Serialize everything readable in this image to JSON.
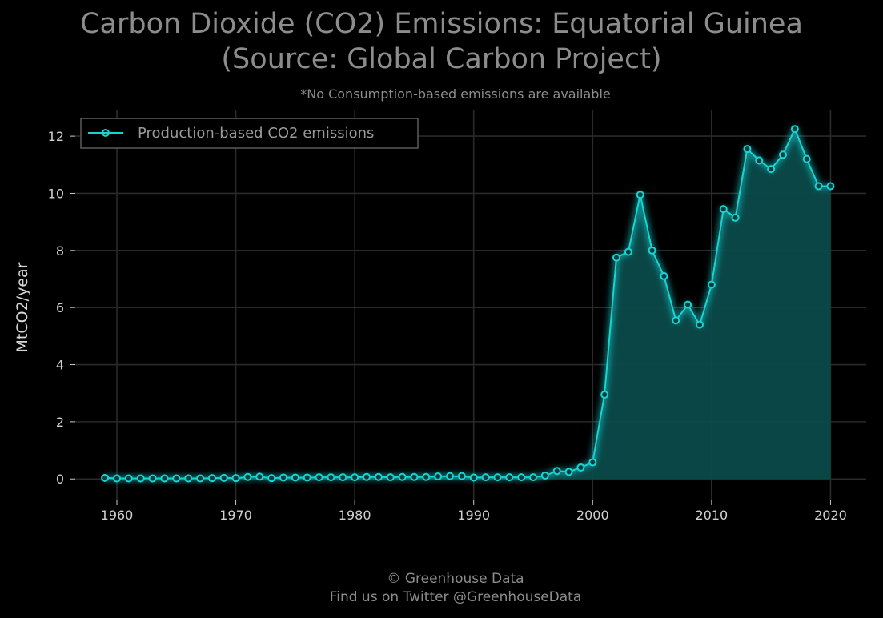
{
  "title_lines": [
    "Carbon Dioxide (CO2) Emissions: Equatorial Guinea",
    "(Source: Global Carbon Project)"
  ],
  "subtitle": "*No Consumption-based emissions are available",
  "footer": {
    "line1": "© Greenhouse Data",
    "line2": "Find us on Twitter @GreenhouseData"
  },
  "colors": {
    "background": "#000000",
    "line": "#19d3d3",
    "fill": "#0b4a4a",
    "grid": "#2a2a2a"
  },
  "chart_data": {
    "type": "area",
    "ylabel": "MtCO2/year",
    "xlabel": "",
    "xlim": [
      1956.5,
      2023
    ],
    "ylim": [
      -0.75,
      12.9
    ],
    "xticks": [
      1960,
      1970,
      1980,
      1990,
      2000,
      2010,
      2020
    ],
    "yticks": [
      0,
      2,
      4,
      6,
      8,
      10,
      12
    ],
    "grid": true,
    "legend_position": "top-left",
    "series": [
      {
        "name": "Production-based CO2 emissions",
        "x": [
          1959,
          1960,
          1961,
          1962,
          1963,
          1964,
          1965,
          1966,
          1967,
          1968,
          1969,
          1970,
          1971,
          1972,
          1973,
          1974,
          1975,
          1976,
          1977,
          1978,
          1979,
          1980,
          1981,
          1982,
          1983,
          1984,
          1985,
          1986,
          1987,
          1988,
          1989,
          1990,
          1991,
          1992,
          1993,
          1994,
          1995,
          1996,
          1997,
          1998,
          1999,
          2000,
          2001,
          2002,
          2003,
          2004,
          2005,
          2006,
          2007,
          2008,
          2009,
          2010,
          2011,
          2012,
          2013,
          2014,
          2015,
          2016,
          2017,
          2018,
          2019,
          2020
        ],
        "y": [
          0.04,
          0.02,
          0.02,
          0.02,
          0.02,
          0.02,
          0.02,
          0.02,
          0.02,
          0.03,
          0.04,
          0.03,
          0.07,
          0.08,
          0.03,
          0.05,
          0.05,
          0.05,
          0.06,
          0.06,
          0.06,
          0.06,
          0.07,
          0.07,
          0.06,
          0.07,
          0.07,
          0.07,
          0.09,
          0.1,
          0.1,
          0.05,
          0.06,
          0.06,
          0.06,
          0.06,
          0.06,
          0.12,
          0.28,
          0.25,
          0.4,
          0.58,
          2.95,
          7.75,
          7.95,
          9.95,
          8.0,
          7.1,
          5.55,
          6.1,
          5.4,
          6.8,
          9.45,
          9.15,
          11.55,
          11.15,
          10.85,
          11.35,
          12.25,
          11.2,
          10.25,
          10.25
        ]
      }
    ]
  }
}
